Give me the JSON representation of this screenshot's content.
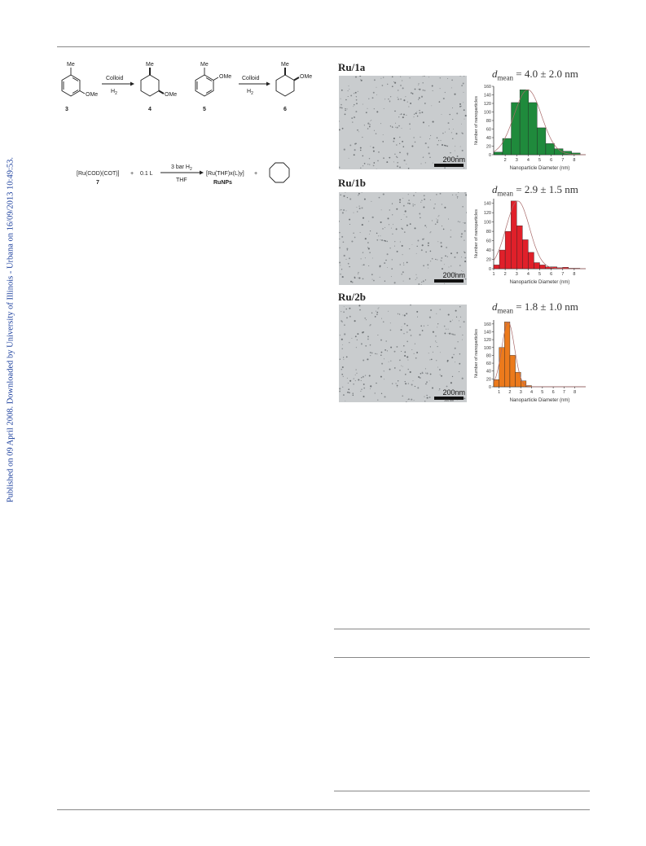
{
  "sidebar_text": "Published on 09 April 2008. Downloaded by University of Illinois - Urbana on 16/09/2013 10:49:53.",
  "scheme1": {
    "me": "Me",
    "ome": "OMe",
    "colloid": "Colloid",
    "h2": "H",
    "h2_sub": "2",
    "labels": [
      "3",
      "4",
      "5",
      "6"
    ]
  },
  "scheme2": {
    "precursor": "[Ru(COD)(COT)]",
    "precursor_num": "7",
    "plus1": "+",
    "ligand": "0.1 L",
    "conditions_top": "3 bar H",
    "conditions_top_sub": "2",
    "conditions_bottom": "THF",
    "product": "[Ru(THF)x(L)y]",
    "product_name": "RuNPs",
    "plus2": "+"
  },
  "panels": [
    {
      "title": "Ru/1a",
      "dmean": {
        "d": "d",
        "sub": "mean",
        "value": " = 4.0 ± 2.0 nm"
      },
      "scalebar": "200nm",
      "color": "#1f8a3c"
    },
    {
      "title": "Ru/1b",
      "dmean": {
        "d": "d",
        "sub": "mean",
        "value": " = 2.9 ± 1.5 nm"
      },
      "scalebar": "200nm",
      "color": "#e0202a"
    },
    {
      "title": "Ru/2b",
      "dmean": {
        "d": "d",
        "sub": "mean",
        "value": " = 1.8 ± 1.0 nm"
      },
      "scalebar": "200nm",
      "tiny_label": "200 nm",
      "color": "#ec7a1c"
    }
  ],
  "chart_data": [
    {
      "type": "bar",
      "title": "",
      "xlabel": "Nanoparticle Diameter (nm)",
      "ylabel": "Number of nanoparticles",
      "xlim": [
        1,
        9
      ],
      "ylim": [
        0,
        160
      ],
      "xticks": [
        2,
        3,
        4,
        5,
        6,
        7,
        8
      ],
      "yticks": [
        0,
        20,
        40,
        60,
        80,
        100,
        120,
        140,
        160
      ],
      "bin_width": 0.75,
      "x": [
        1.4,
        2.15,
        2.9,
        3.65,
        4.4,
        5.15,
        5.9,
        6.65,
        7.4,
        8.15
      ],
      "values": [
        6,
        38,
        122,
        152,
        122,
        63,
        26,
        14,
        8,
        4
      ],
      "fit": "gaussian",
      "series": [
        {
          "values": [
            6,
            38,
            122,
            152,
            122,
            63,
            26,
            14,
            8,
            4
          ],
          "color": "#1f8a3c"
        }
      ]
    },
    {
      "type": "bar",
      "title": "",
      "xlabel": "Nanoparticle Diameter (nm)",
      "ylabel": "Number of nanoparticles",
      "xlim": [
        1,
        9
      ],
      "ylim": [
        0,
        150
      ],
      "xticks": [
        1,
        2,
        3,
        4,
        5,
        6,
        7,
        8
      ],
      "yticks": [
        0,
        20,
        40,
        60,
        80,
        100,
        120,
        140
      ],
      "bin_width": 0.5,
      "x": [
        1.25,
        1.75,
        2.25,
        2.75,
        3.25,
        3.75,
        4.25,
        4.75,
        5.25,
        5.75,
        6.25,
        6.75,
        7.25,
        7.75,
        8.25
      ],
      "values": [
        8,
        40,
        80,
        145,
        92,
        62,
        35,
        13,
        8,
        4,
        4,
        2,
        3,
        1,
        1
      ],
      "fit": "gaussian",
      "series": [
        {
          "values": [
            8,
            40,
            80,
            145,
            92,
            62,
            35,
            13,
            8,
            4,
            4,
            2,
            3,
            1,
            1
          ],
          "color": "#e0202a"
        }
      ]
    },
    {
      "type": "bar",
      "title": "",
      "xlabel": "Nanoparticle Diameter (nm)",
      "ylabel": "Number of nanoparticles",
      "xlim": [
        0.5,
        9
      ],
      "ylim": [
        0,
        170
      ],
      "xticks": [
        1,
        2,
        3,
        4,
        5,
        6,
        7,
        8
      ],
      "yticks": [
        0,
        20,
        40,
        60,
        80,
        100,
        120,
        140,
        160
      ],
      "bin_width": 0.5,
      "x": [
        0.75,
        1.25,
        1.75,
        2.25,
        2.75,
        3.25,
        3.75
      ],
      "values": [
        18,
        100,
        165,
        80,
        37,
        15,
        3
      ],
      "fit": "gaussian",
      "series": [
        {
          "values": [
            18,
            100,
            165,
            80,
            37,
            15,
            3
          ],
          "color": "#ec7a1c"
        }
      ]
    }
  ]
}
